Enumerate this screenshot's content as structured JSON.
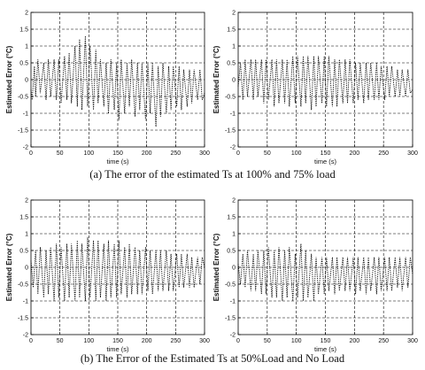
{
  "captions": {
    "a": "(a) The error of the estimated Ts at 100% and 75% load",
    "b": "(b) The Error of the Estimated Ts at 50%Load and No Load"
  },
  "colors": {
    "trace": "#000000",
    "grid": "#000000",
    "background": "#ffffff"
  },
  "chart_data": [
    {
      "type": "line",
      "title": "",
      "xlabel": "time (s)",
      "ylabel": "Estimated Error (°C)",
      "xlim": [
        0,
        300
      ],
      "ylim": [
        -2,
        2
      ],
      "xticks": [
        0,
        50,
        100,
        150,
        200,
        250,
        300
      ],
      "yticks": [
        -2,
        -1.5,
        -1,
        -0.5,
        0,
        0.5,
        1,
        1.5,
        2
      ],
      "ytick_labels": [
        "-2",
        "-1.5",
        "-1",
        "-0.5",
        "0",
        "0.5",
        "1",
        "1.5",
        "2"
      ],
      "grid": true,
      "line_style": "dotted",
      "series": [
        {
          "x": [
            0,
            2,
            6,
            8,
            12,
            16,
            22,
            26,
            30,
            34,
            40,
            44,
            48,
            52,
            58,
            62,
            66,
            70,
            76,
            80,
            84,
            88,
            94,
            98,
            102,
            108,
            112,
            116,
            120,
            126,
            130,
            134,
            138,
            144,
            148,
            152,
            156,
            162,
            166,
            170,
            174,
            180,
            184,
            188,
            192,
            198,
            202,
            206,
            210,
            216,
            220,
            224,
            228,
            234,
            238,
            242,
            246,
            252,
            256,
            260,
            264,
            270,
            274,
            278,
            282,
            288,
            292,
            296,
            300
          ],
          "y": [
            -0.3,
            -0.6,
            0.4,
            -0.5,
            0.6,
            -0.4,
            0.5,
            -0.6,
            0.6,
            -0.5,
            0.6,
            -0.6,
            0.6,
            -0.7,
            0.7,
            -0.6,
            0.8,
            -0.7,
            1.0,
            -0.8,
            1.2,
            -0.9,
            1.3,
            -0.8,
            1.0,
            -0.9,
            0.9,
            -0.7,
            0.6,
            -0.8,
            0.5,
            -1.0,
            0.6,
            -0.9,
            0.5,
            -1.2,
            0.6,
            -1.0,
            0.5,
            -0.8,
            0.6,
            -1.1,
            0.5,
            -0.9,
            0.5,
            -1.2,
            0.5,
            -1.0,
            0.5,
            -1.4,
            0.4,
            -1.1,
            0.5,
            -1.0,
            0.4,
            -0.9,
            0.4,
            -0.8,
            0.4,
            -0.9,
            0.3,
            -0.8,
            0.3,
            -0.7,
            0.3,
            -0.6,
            0.3,
            -0.6,
            -0.4
          ]
        }
      ]
    },
    {
      "type": "line",
      "title": "",
      "xlabel": "time (s)",
      "ylabel": "Estimated Error (°C)",
      "xlim": [
        0,
        300
      ],
      "ylim": [
        -2,
        2
      ],
      "xticks": [
        0,
        50,
        100,
        150,
        200,
        250,
        300
      ],
      "yticks": [
        -2,
        -1.5,
        -1,
        -0.5,
        0,
        0.5,
        1,
        1.5,
        2
      ],
      "ytick_labels": [
        "-2",
        "-1.5",
        "-1",
        "-0.5",
        "0",
        "0.5",
        "1",
        "1.5",
        "2"
      ],
      "grid": true,
      "line_style": "dotted",
      "series": [
        {
          "x": [
            0,
            4,
            8,
            12,
            16,
            22,
            26,
            30,
            34,
            40,
            44,
            48,
            52,
            58,
            62,
            66,
            70,
            76,
            80,
            84,
            88,
            94,
            98,
            102,
            108,
            112,
            116,
            120,
            126,
            130,
            134,
            138,
            144,
            148,
            152,
            156,
            162,
            166,
            170,
            174,
            180,
            184,
            188,
            192,
            198,
            202,
            206,
            210,
            216,
            220,
            224,
            228,
            234,
            238,
            242,
            246,
            252,
            256,
            260,
            264,
            270,
            274,
            278,
            282,
            288,
            292,
            296,
            300
          ],
          "y": [
            -0.2,
            0.5,
            -0.6,
            0.6,
            -0.5,
            0.6,
            -0.6,
            0.6,
            -0.5,
            0.6,
            -0.7,
            0.6,
            -0.6,
            0.6,
            -0.8,
            0.6,
            -0.7,
            0.6,
            -0.7,
            0.6,
            -0.8,
            0.7,
            -0.7,
            0.7,
            -0.8,
            0.7,
            -0.7,
            0.7,
            -0.9,
            0.7,
            -0.8,
            0.7,
            -0.7,
            0.7,
            -0.8,
            0.7,
            -0.8,
            0.6,
            -0.8,
            0.6,
            -0.7,
            0.6,
            -0.7,
            0.6,
            -0.7,
            0.5,
            -0.6,
            0.5,
            -0.7,
            0.5,
            -0.6,
            0.5,
            -0.6,
            0.5,
            -0.6,
            0.4,
            -0.6,
            0.4,
            -0.5,
            0.4,
            -0.5,
            0.3,
            -0.5,
            0.3,
            -0.5,
            0.3,
            -0.4,
            -0.3
          ]
        }
      ]
    },
    {
      "type": "line",
      "title": "",
      "xlabel": "time (s)",
      "ylabel": "Estimated Error (°C)",
      "xlim": [
        0,
        300
      ],
      "ylim": [
        -2,
        2
      ],
      "xticks": [
        0,
        50,
        100,
        150,
        200,
        250,
        300
      ],
      "yticks": [
        -2,
        -1.5,
        -1,
        -0.5,
        0,
        0.5,
        1,
        1.5,
        2
      ],
      "ytick_labels": [
        "-2",
        "-1.5",
        "-1",
        "-0.5",
        "0",
        "0.5",
        "1",
        "1.5",
        "2"
      ],
      "grid": true,
      "line_style": "dotted",
      "series": [
        {
          "x": [
            0,
            4,
            8,
            12,
            16,
            22,
            26,
            30,
            34,
            40,
            44,
            48,
            52,
            58,
            62,
            66,
            70,
            76,
            80,
            84,
            88,
            94,
            98,
            102,
            108,
            112,
            116,
            120,
            126,
            130,
            134,
            138,
            144,
            148,
            152,
            156,
            162,
            166,
            170,
            174,
            180,
            184,
            188,
            192,
            198,
            202,
            206,
            210,
            216,
            220,
            224,
            228,
            234,
            238,
            242,
            246,
            252,
            256,
            260,
            264,
            270,
            274,
            278,
            282,
            288,
            292,
            296,
            300
          ],
          "y": [
            0.2,
            -0.6,
            0.5,
            -0.8,
            0.6,
            -0.9,
            0.5,
            -0.8,
            0.6,
            -1.0,
            0.7,
            -0.9,
            0.6,
            -1.0,
            0.7,
            -0.9,
            0.7,
            -1.0,
            0.8,
            -0.9,
            0.7,
            -1.0,
            0.9,
            -0.9,
            0.8,
            -1.0,
            0.8,
            -0.9,
            0.7,
            -1.0,
            0.8,
            -0.9,
            0.7,
            -0.9,
            0.8,
            -0.8,
            0.6,
            -0.9,
            0.7,
            -0.8,
            0.6,
            -0.8,
            0.5,
            -0.8,
            0.6,
            -0.7,
            0.5,
            -0.8,
            0.5,
            -0.7,
            0.5,
            -0.7,
            0.5,
            -0.7,
            0.4,
            -0.7,
            0.4,
            -0.6,
            0.4,
            -0.6,
            0.4,
            -0.6,
            0.3,
            -0.6,
            0.3,
            -0.5,
            0.3,
            0.0
          ]
        }
      ]
    },
    {
      "type": "line",
      "title": "",
      "xlabel": "time (s)",
      "ylabel": "Estimated Error (°C)",
      "xlim": [
        0,
        300
      ],
      "ylim": [
        -2,
        2
      ],
      "xticks": [
        0,
        50,
        100,
        150,
        200,
        250,
        300
      ],
      "yticks": [
        -2,
        -1.5,
        -1,
        -0.5,
        0,
        0.5,
        1,
        1.5,
        2
      ],
      "ytick_labels": [
        "-2",
        "-1.5",
        "-1",
        "-0.5",
        "0",
        "0.5",
        "1",
        "1.5",
        "2"
      ],
      "grid": true,
      "line_style": "dotted",
      "series": [
        {
          "x": [
            0,
            4,
            8,
            12,
            16,
            22,
            26,
            30,
            34,
            40,
            44,
            48,
            52,
            58,
            62,
            66,
            70,
            76,
            80,
            84,
            88,
            94,
            98,
            102,
            108,
            112,
            116,
            120,
            126,
            130,
            134,
            138,
            144,
            148,
            152,
            156,
            162,
            166,
            170,
            174,
            180,
            184,
            188,
            192,
            198,
            202,
            206,
            210,
            216,
            220,
            224,
            228,
            234,
            238,
            242,
            246,
            252,
            256,
            260,
            264,
            270,
            274,
            278,
            282,
            288,
            292,
            296,
            300
          ],
          "y": [
            0.1,
            -0.5,
            0.4,
            -0.6,
            0.5,
            -0.7,
            0.4,
            -0.7,
            0.5,
            -0.8,
            0.5,
            -0.8,
            0.6,
            -0.9,
            0.5,
            -0.9,
            0.6,
            -1.0,
            0.5,
            -0.9,
            0.6,
            -1.0,
            0.4,
            -0.9,
            0.7,
            -1.0,
            0.5,
            -0.9,
            0.4,
            -1.0,
            0.3,
            -0.8,
            0.3,
            -0.8,
            0.3,
            -0.7,
            0.3,
            -0.8,
            0.3,
            -0.7,
            0.3,
            -0.7,
            0.3,
            -0.7,
            0.3,
            -0.8,
            0.3,
            -0.7,
            0.3,
            -0.8,
            0.3,
            -0.7,
            0.3,
            -0.8,
            0.3,
            -0.7,
            0.3,
            -0.7,
            0.3,
            -0.7,
            0.3,
            -0.6,
            0.3,
            -0.7,
            0.3,
            -0.6,
            0.3,
            -0.2
          ]
        }
      ]
    }
  ]
}
